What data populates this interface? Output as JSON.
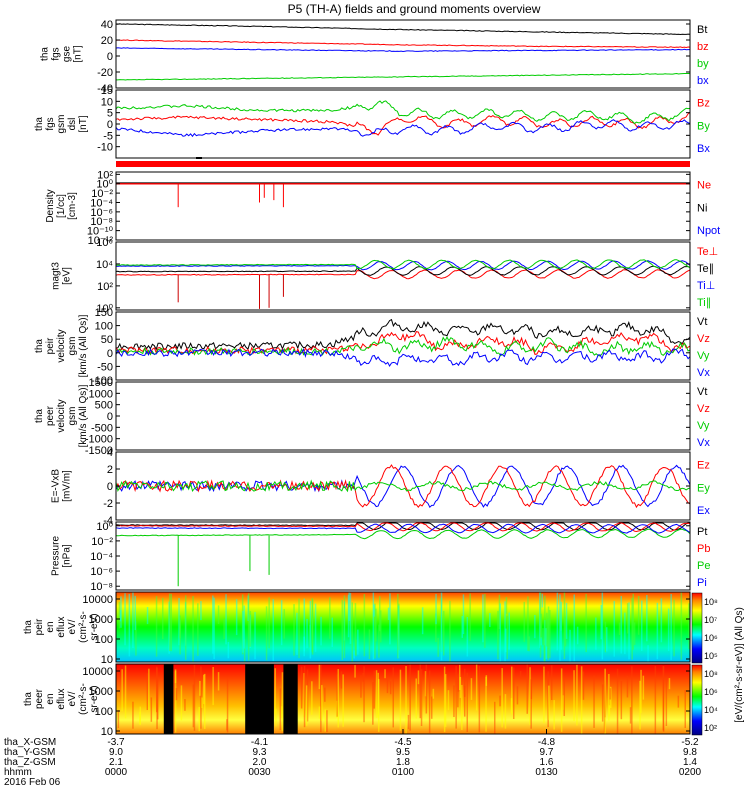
{
  "title": "P5 (TH-A) fields and ground moments overview",
  "colors": {
    "black": "#000000",
    "red": "#ff0000",
    "green": "#00cc00",
    "blue": "#0000ff"
  },
  "chart_data": [
    {
      "type": "line",
      "panel": "fgs",
      "ylabel_lines": [
        "tha",
        "fgs",
        "gse",
        "[nT]"
      ],
      "ylim": [
        -40,
        45
      ],
      "yticks": [
        "40",
        "20",
        "0",
        "-20",
        "-40"
      ],
      "ytick_values": [
        40,
        20,
        0,
        -20,
        -40
      ],
      "series": [
        {
          "name": "Bt",
          "color": "#000000",
          "x": [
            0,
            30,
            60,
            90,
            120
          ],
          "values": [
            40,
            37,
            33,
            30,
            27
          ]
        },
        {
          "name": "bz",
          "color": "#ff0000",
          "x": [
            0,
            30,
            60,
            90,
            120
          ],
          "values": [
            20,
            17,
            14,
            12,
            11
          ]
        },
        {
          "name": "by",
          "color": "#00cc00",
          "x": [
            0,
            30,
            60,
            90,
            120
          ],
          "values": [
            -30,
            -28,
            -26,
            -24,
            -22
          ]
        },
        {
          "name": "bx",
          "color": "#0000ff",
          "x": [
            0,
            30,
            60,
            90,
            120
          ],
          "values": [
            10,
            8,
            6,
            7,
            8
          ]
        }
      ]
    },
    {
      "type": "line",
      "panel": "fgs_gsm",
      "ylabel_lines": [
        "tha",
        "fgs",
        "gsm",
        "dsl",
        "[nT]"
      ],
      "ylim": [
        -15,
        15
      ],
      "yticks": [
        "15",
        "10",
        "5",
        "0",
        "-5",
        "-10"
      ],
      "ytick_values": [
        15,
        10,
        5,
        0,
        -5,
        -10
      ],
      "series": [
        {
          "name": "Bz",
          "color": "#ff0000",
          "x": [
            0,
            15,
            30,
            45,
            55,
            60,
            70,
            80,
            90,
            100,
            110,
            120
          ],
          "values": [
            2,
            3,
            2,
            1,
            -3,
            3,
            0,
            2,
            0,
            1,
            0,
            3
          ]
        },
        {
          "name": "By",
          "color": "#00cc00",
          "x": [
            0,
            15,
            30,
            45,
            55,
            60,
            70,
            80,
            90,
            100,
            110,
            120
          ],
          "values": [
            7,
            8,
            6,
            6,
            9,
            5,
            4,
            5,
            3,
            4,
            2,
            5
          ]
        },
        {
          "name": "Bx",
          "color": "#0000ff",
          "x": [
            0,
            15,
            30,
            45,
            55,
            60,
            70,
            80,
            90,
            100,
            110,
            120
          ],
          "values": [
            -2,
            -5,
            -3,
            -2,
            -4,
            -2,
            -3,
            -1,
            -2,
            0,
            -1,
            0
          ]
        }
      ]
    },
    {
      "type": "line",
      "panel": "density",
      "ylabel_lines": [
        "Density",
        "[1/cc]",
        "[cm-3]"
      ],
      "yticks": [
        "10²",
        "10⁰",
        "10⁻²",
        "10⁻⁴",
        "10⁻⁶",
        "10⁻⁸",
        "10⁻¹⁰",
        "10⁻¹²"
      ],
      "ytick_values": [
        2,
        0,
        -2,
        -4,
        -6,
        -8,
        -10,
        -12
      ],
      "ylim": [
        -12,
        2.5
      ],
      "log_scale": true,
      "series": [
        {
          "name": "Ne",
          "color": "#ff0000"
        },
        {
          "name": "Ni",
          "color": "#000000"
        },
        {
          "name": "Npot",
          "color": "#0000ff"
        }
      ]
    },
    {
      "type": "line",
      "panel": "temperature",
      "ylabel_lines": [
        "magt3",
        "[eV]"
      ],
      "yticks": [
        "10⁶",
        "10⁴",
        "10²",
        "10⁰"
      ],
      "ytick_values": [
        6,
        4,
        2,
        0
      ],
      "ylim": [
        -0.2,
        6
      ],
      "log_scale": true,
      "series": [
        {
          "name": "Te⊥",
          "color": "#ff0000",
          "x": [
            0,
            120
          ],
          "values": [
            3.0,
            3.1
          ]
        },
        {
          "name": "Te∥",
          "color": "#000000",
          "x": [
            0,
            120
          ],
          "values": [
            3.3,
            3.4
          ]
        },
        {
          "name": "Ti⊥",
          "color": "#0000ff",
          "x": [
            0,
            120
          ],
          "values": [
            3.8,
            3.9
          ]
        },
        {
          "name": "Ti∥",
          "color": "#00cc00",
          "x": [
            0,
            120
          ],
          "values": [
            3.9,
            4.0
          ]
        }
      ]
    },
    {
      "type": "line",
      "panel": "peir_velocity",
      "ylabel_lines": [
        "tha",
        "peir",
        "velocity",
        "gsm",
        "[km/s (All Qs)]"
      ],
      "ylim": [
        -100,
        150
      ],
      "yticks": [
        "150",
        "100",
        "50",
        "0",
        "-50",
        "-100"
      ],
      "ytick_values": [
        150,
        100,
        50,
        0,
        -50,
        -100
      ],
      "series": [
        {
          "name": "Vt",
          "color": "#000000",
          "x": [
            0,
            30,
            45,
            55,
            60,
            70,
            80,
            90,
            100,
            110,
            120
          ],
          "values": [
            25,
            25,
            30,
            90,
            100,
            80,
            90,
            70,
            80,
            90,
            40
          ]
        },
        {
          "name": "Vz",
          "color": "#ff0000",
          "x": [
            0,
            30,
            45,
            55,
            60,
            70,
            80,
            90,
            100,
            110,
            120
          ],
          "values": [
            10,
            10,
            10,
            40,
            70,
            20,
            50,
            10,
            40,
            60,
            10
          ]
        },
        {
          "name": "Vy",
          "color": "#00cc00",
          "x": [
            0,
            30,
            45,
            55,
            60,
            70,
            80,
            90,
            100,
            110,
            120
          ],
          "values": [
            5,
            5,
            5,
            30,
            20,
            40,
            10,
            30,
            10,
            20,
            10
          ]
        },
        {
          "name": "Vx",
          "color": "#0000ff",
          "x": [
            0,
            30,
            45,
            55,
            60,
            70,
            80,
            90,
            100,
            110,
            120
          ],
          "values": [
            0,
            0,
            0,
            -40,
            -20,
            -30,
            -10,
            -20,
            -10,
            -20,
            0
          ]
        }
      ]
    },
    {
      "type": "line",
      "panel": "peer_velocity",
      "ylabel_lines": [
        "tha",
        "peer",
        "velocity",
        "gsm",
        "[km/s (All Qs)]"
      ],
      "ylim": [
        -1500,
        1500
      ],
      "yticks": [
        "1500",
        "1000",
        "500",
        "0",
        "-500",
        "-1000",
        "-1500"
      ],
      "ytick_values": [
        1500,
        1000,
        500,
        0,
        -500,
        -1000,
        -1500
      ],
      "series": [
        {
          "name": "Vt",
          "color": "#000000"
        },
        {
          "name": "Vz",
          "color": "#ff0000"
        },
        {
          "name": "Vy",
          "color": "#00cc00"
        },
        {
          "name": "Vx",
          "color": "#0000ff"
        }
      ]
    },
    {
      "type": "line",
      "panel": "efield",
      "ylabel_lines": [
        "E=-VxB",
        "[mV/m]"
      ],
      "ylim": [
        -4,
        4
      ],
      "yticks": [
        "4",
        "2",
        "0",
        "-2",
        "-4"
      ],
      "ytick_values": [
        4,
        2,
        0,
        -2,
        -4
      ],
      "series": [
        {
          "name": "Ez",
          "color": "#ff0000"
        },
        {
          "name": "Ey",
          "color": "#00cc00"
        },
        {
          "name": "Ex",
          "color": "#0000ff"
        }
      ]
    },
    {
      "type": "line",
      "panel": "pressure",
      "ylabel_lines": [
        "Pressure",
        "[nPa]"
      ],
      "yticks": [
        "10⁰",
        "10⁻²",
        "10⁻⁴",
        "10⁻⁶",
        "10⁻⁸"
      ],
      "ytick_values": [
        0,
        -2,
        -4,
        -6,
        -8
      ],
      "ylim": [
        -8.5,
        0.5
      ],
      "log_scale": true,
      "series": [
        {
          "name": "Pt",
          "color": "#000000",
          "x": [
            0,
            120
          ],
          "values": [
            0.1,
            0
          ]
        },
        {
          "name": "Pb",
          "color": "#ff0000",
          "x": [
            0,
            120
          ],
          "values": [
            0,
            -0.2
          ]
        },
        {
          "name": "Pe",
          "color": "#00cc00",
          "x": [
            0,
            120
          ],
          "values": [
            -1.3,
            -1.0
          ]
        },
        {
          "name": "Pi",
          "color": "#0000ff",
          "x": [
            0,
            120
          ],
          "values": [
            -0.3,
            -0.4
          ]
        }
      ]
    },
    {
      "type": "heatmap",
      "panel": "peir_spectrogram",
      "ylabel_lines": [
        "tha",
        "peir",
        "en",
        "eflux",
        "eV/",
        "(cm²-s-",
        "sr-eV)"
      ],
      "yticks": [
        "10000",
        "1000",
        "100",
        "10"
      ],
      "ytick_values": [
        10000,
        1000,
        100,
        10
      ],
      "log_scale": true
    },
    {
      "type": "heatmap",
      "panel": "peer_spectrogram",
      "ylabel_lines": [
        "tha",
        "peer",
        "en",
        "eflux",
        "eV/",
        "(cm²-s-",
        "sr-eV)"
      ],
      "yticks": [
        "10000",
        "1000",
        "100",
        "10"
      ],
      "ytick_values": [
        10000,
        1000,
        100,
        10
      ],
      "log_scale": true
    }
  ],
  "colorbar": {
    "label": "[eV/(cm²-s-sr-eV)] (All Qs)",
    "top_ticks": [
      "10⁸",
      "10⁷",
      "10⁶",
      "10⁵"
    ],
    "bottom_ticks": [
      "10⁸",
      "10⁶",
      "10⁴",
      "10²"
    ]
  },
  "x_axis": {
    "tick_minutes": [
      0,
      30,
      60,
      90,
      120
    ],
    "rows": [
      {
        "label": "tha_X-GSM",
        "values": [
          "-3.7",
          "-4.1",
          "-4.5",
          "-4.8",
          "-5.2"
        ]
      },
      {
        "label": "tha_Y-GSM",
        "values": [
          "9.0",
          "9.3",
          "9.5",
          "9.7",
          "9.8"
        ]
      },
      {
        "label": "tha_Z-GSM",
        "values": [
          "2.1",
          "2.0",
          "1.8",
          "1.6",
          "1.4"
        ]
      },
      {
        "label": "hhmm",
        "values": [
          "0000",
          "0030",
          "0100",
          "0130",
          "0200"
        ]
      }
    ],
    "date": "2016 Feb 06"
  }
}
